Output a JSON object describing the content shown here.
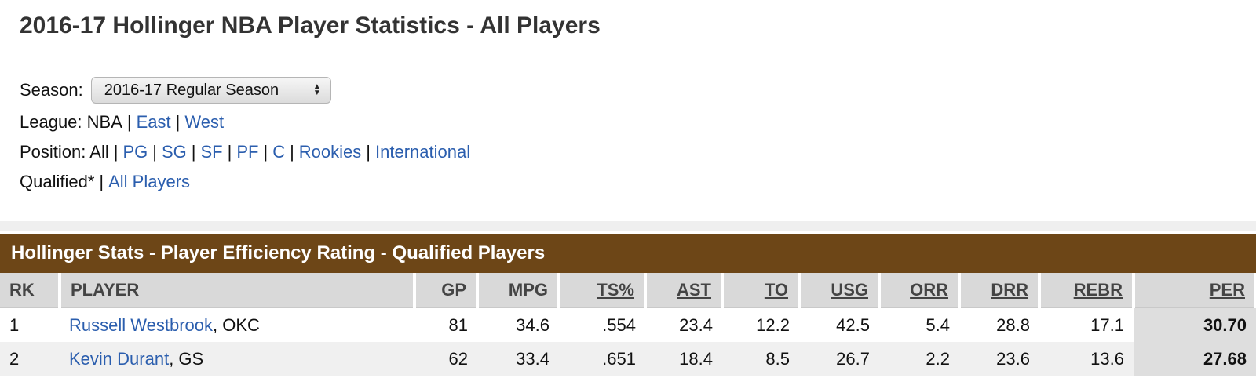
{
  "page_title": "2016-17 Hollinger NBA Player Statistics - All Players",
  "season": {
    "label": "Season:",
    "selected": "2016-17 Regular Season"
  },
  "league": {
    "label": "League:",
    "current": "NBA",
    "links": [
      "East",
      "West"
    ]
  },
  "position": {
    "label": "Position:",
    "current": "All",
    "links": [
      "PG",
      "SG",
      "SF",
      "PF",
      "C",
      "Rookies",
      "International"
    ]
  },
  "qualified": {
    "current": "Qualified*",
    "link": "All Players"
  },
  "table": {
    "title": "Hollinger Stats - Player Efficiency Rating - Qualified Players",
    "headers": [
      "RK",
      "PLAYER",
      "GP",
      "MPG",
      "TS%",
      "AST",
      "TO",
      "USG",
      "ORR",
      "DRR",
      "REBR",
      "PER"
    ],
    "rows": [
      {
        "rk": "1",
        "player": "Russell Westbrook",
        "team": ", OKC",
        "gp": "81",
        "mpg": "34.6",
        "ts": ".554",
        "ast": "23.4",
        "to": "12.2",
        "usg": "42.5",
        "orr": "5.4",
        "drr": "28.8",
        "rebr": "17.1",
        "per": "30.70"
      },
      {
        "rk": "2",
        "player": "Kevin Durant",
        "team": ", GS",
        "gp": "62",
        "mpg": "33.4",
        "ts": ".651",
        "ast": "18.4",
        "to": "8.5",
        "usg": "26.7",
        "orr": "2.2",
        "drr": "23.6",
        "rebr": "13.6",
        "per": "27.68"
      }
    ]
  },
  "colors": {
    "band": "#6d4617",
    "link": "#2b5eae",
    "header_bg": "#d9d9d9"
  }
}
